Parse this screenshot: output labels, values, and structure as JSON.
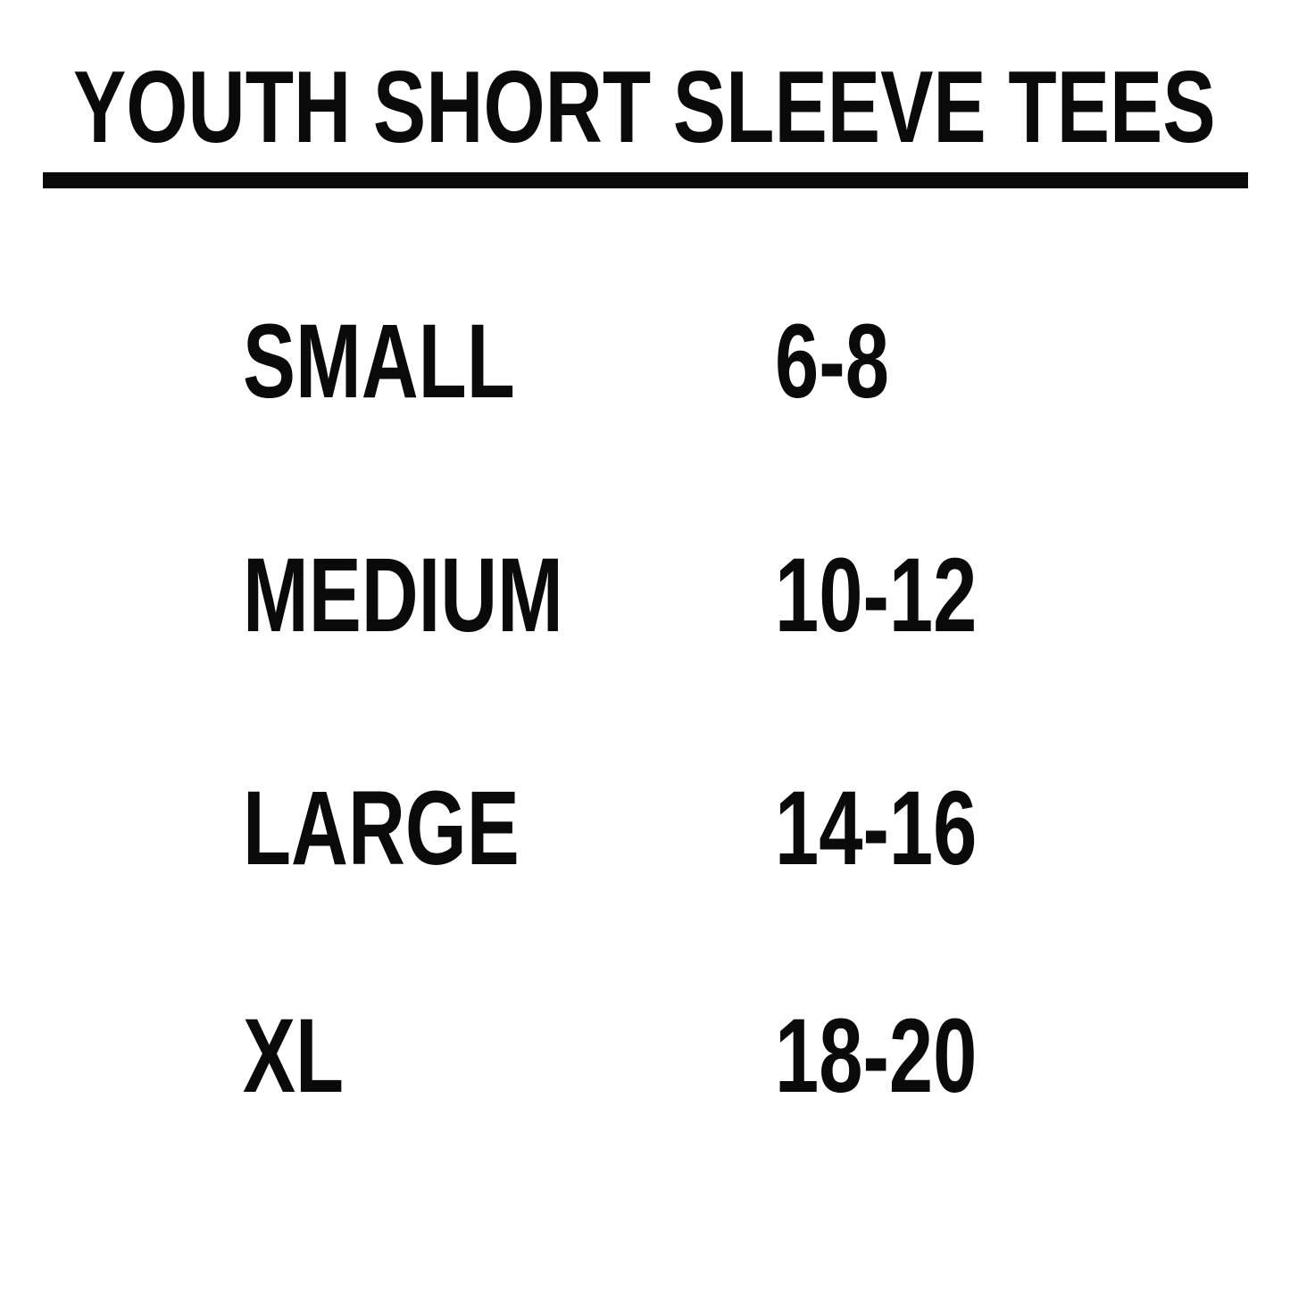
{
  "page": {
    "background_color": "#ffffff",
    "text_color": "#0a0a0a"
  },
  "header": {
    "title": "YOUTH SHORT SLEEVE TEES"
  },
  "size_chart": {
    "rows": [
      {
        "size": "SMALL",
        "range": "6-8"
      },
      {
        "size": "MEDIUM",
        "range": "10-12"
      },
      {
        "size": "LARGE",
        "range": "14-16"
      },
      {
        "size": "XL",
        "range": "18-20"
      }
    ]
  }
}
